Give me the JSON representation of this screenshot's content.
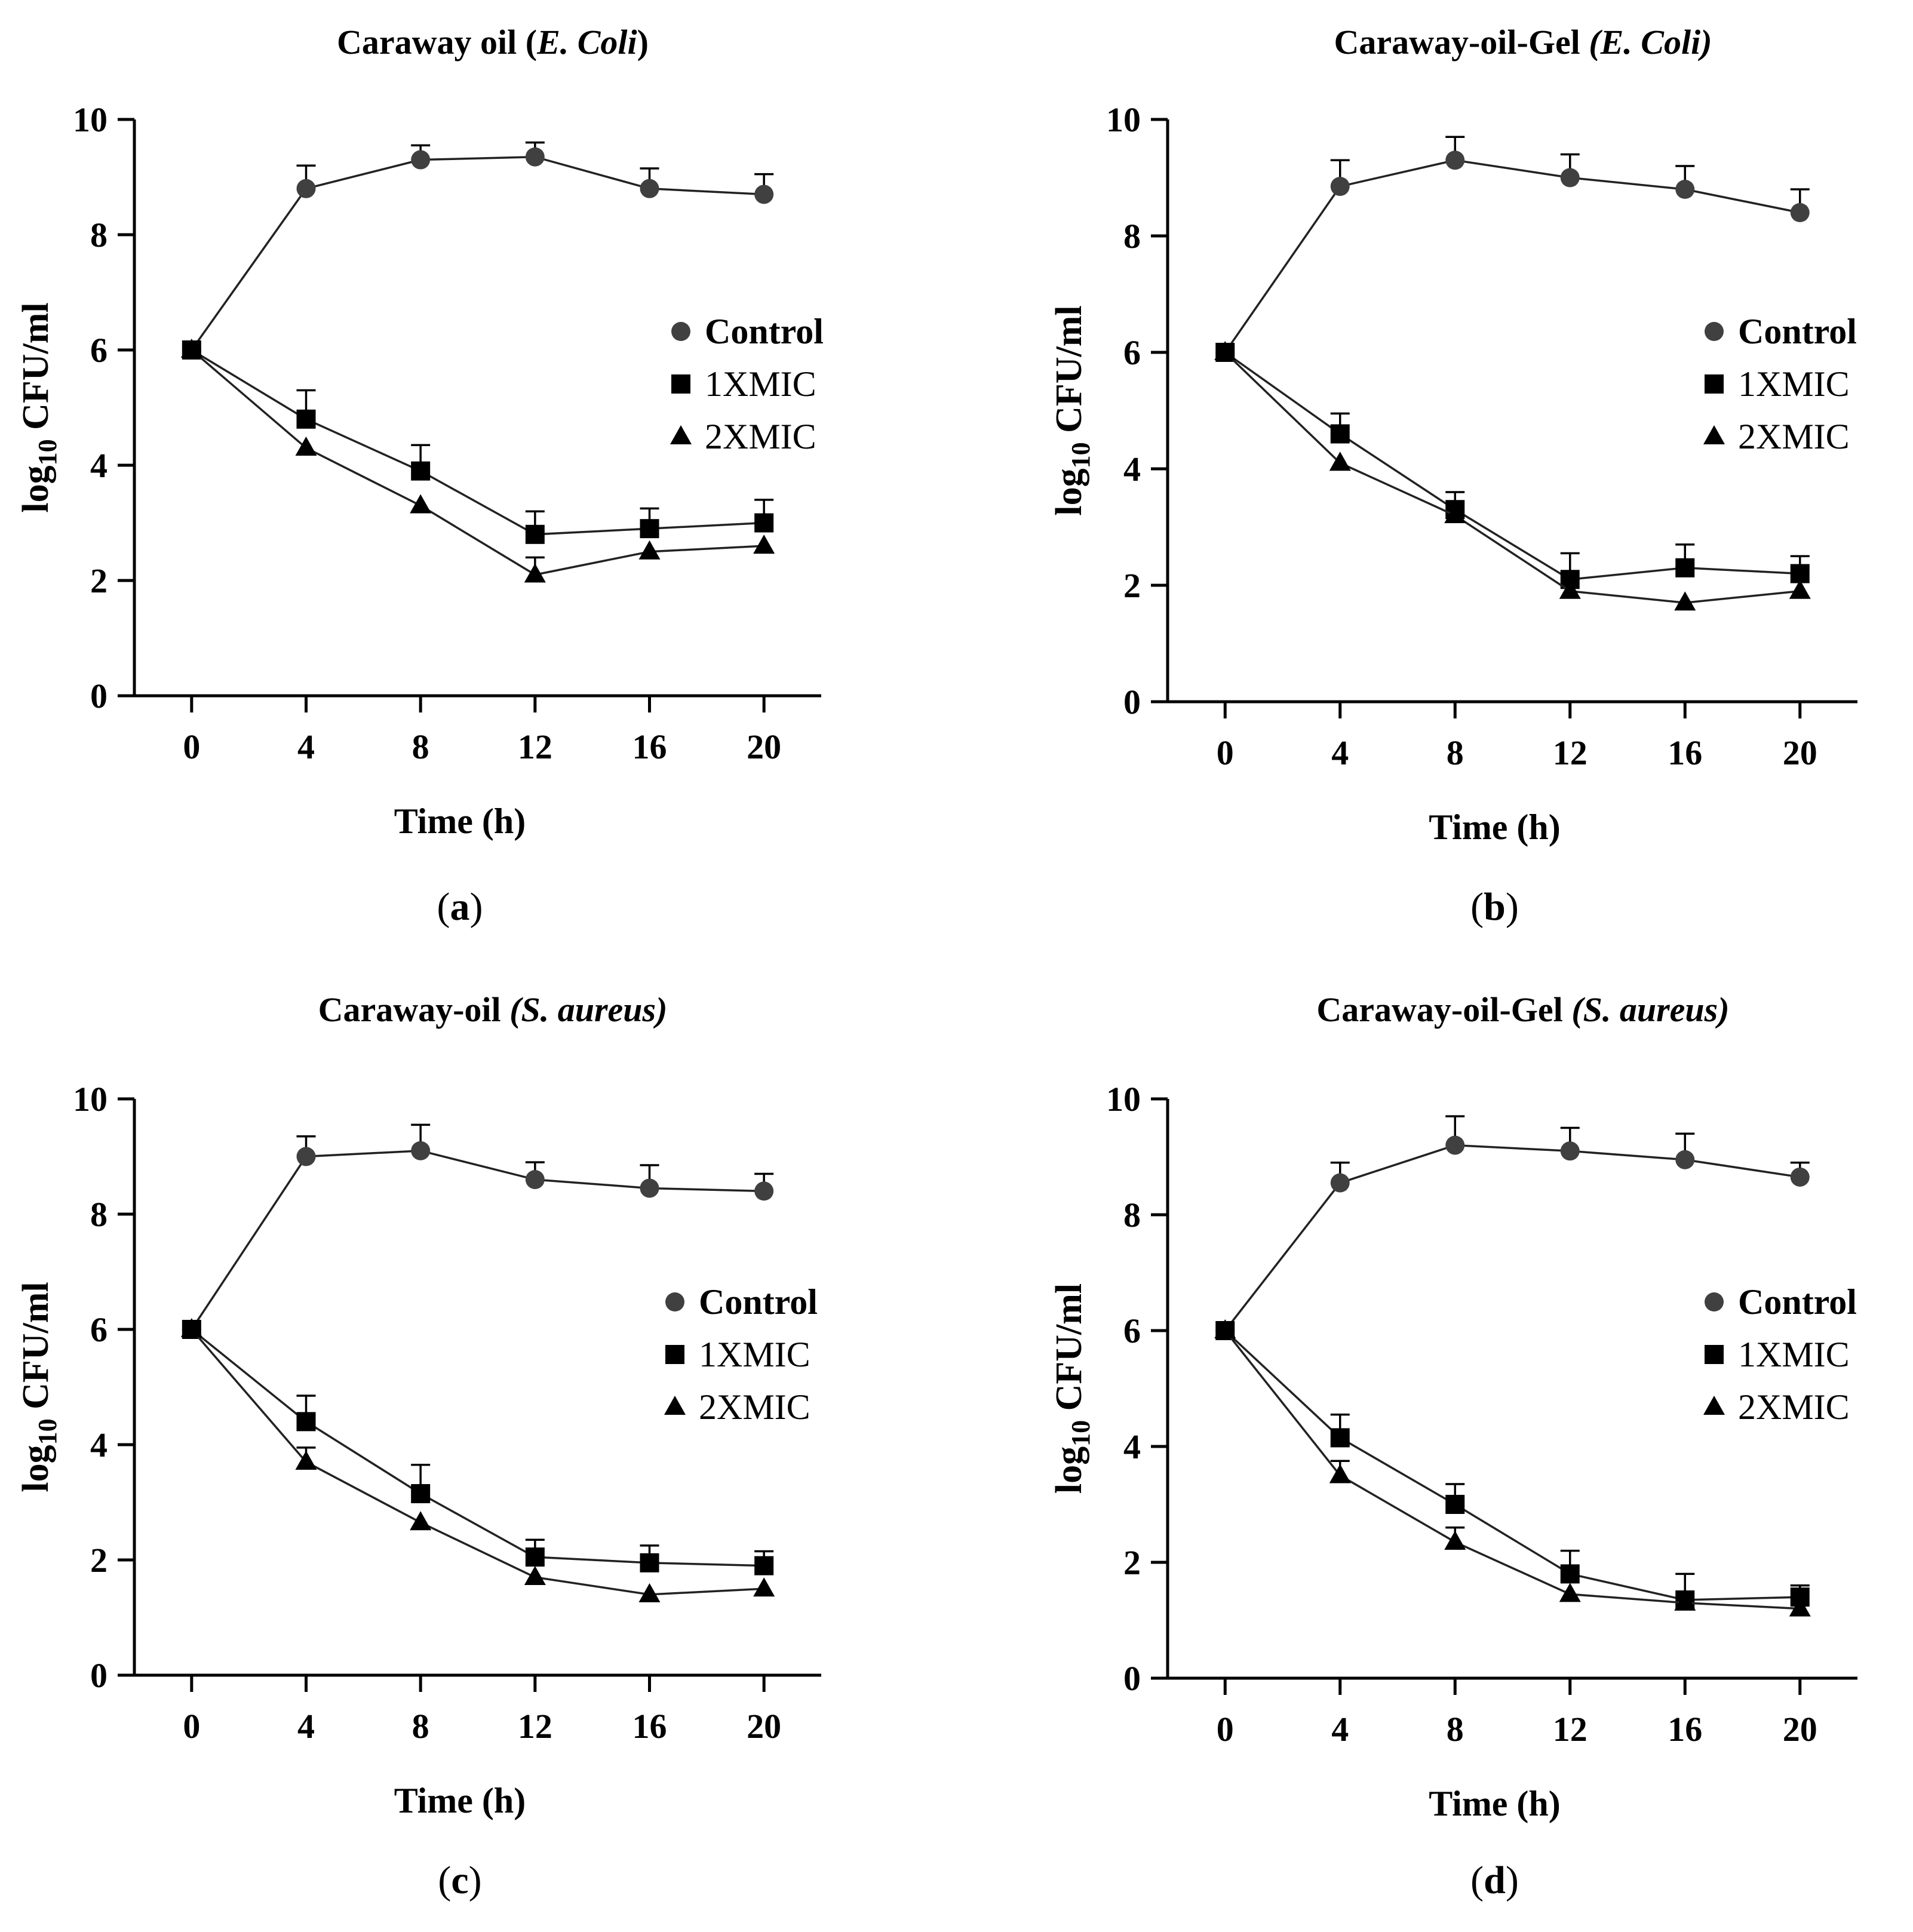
{
  "chart_data": [
    {
      "type": "line",
      "title_prefix": "Caraway oil (",
      "title_italic": "E. Coli",
      "title_suffix": ")",
      "panel_label_pre": "(",
      "panel_label_letter": "a",
      "panel_label_post": ")",
      "xlabel": "Time (h)",
      "ylabel_pre": "log",
      "ylabel_sub": "10",
      "ylabel_post": " CFU/ml",
      "x": [
        0,
        4,
        8,
        12,
        16,
        20
      ],
      "xlim": [
        -2,
        22
      ],
      "ylim": [
        0,
        10
      ],
      "xticks": [
        "0",
        "4",
        "8",
        "12",
        "16",
        "20"
      ],
      "yticks": [
        "0",
        "2",
        "4",
        "6",
        "8",
        "10"
      ],
      "legend_position": "center-right",
      "series": [
        {
          "name": "Control",
          "marker": "circle",
          "values": [
            6.0,
            8.8,
            9.3,
            9.35,
            8.8,
            8.7
          ],
          "errors": [
            0,
            0.4,
            0.25,
            0.25,
            0.35,
            0.35
          ]
        },
        {
          "name": "1XMIC",
          "marker": "square",
          "values": [
            6.0,
            4.8,
            3.9,
            2.8,
            2.9,
            3.0
          ],
          "errors": [
            0,
            0.5,
            0.45,
            0.4,
            0.35,
            0.4
          ]
        },
        {
          "name": "2XMIC",
          "marker": "triangle",
          "values": [
            6.0,
            4.3,
            3.3,
            2.1,
            2.5,
            2.6
          ],
          "errors": [
            0,
            0,
            0,
            0.3,
            0,
            0
          ]
        }
      ]
    },
    {
      "type": "line",
      "title_prefix": "Caraway-oil-Gel ",
      "title_italic": "(E. Coli)",
      "title_suffix": "",
      "panel_label_pre": "(",
      "panel_label_letter": "b",
      "panel_label_post": ")",
      "xlabel": "Time (h)",
      "ylabel_pre": "log",
      "ylabel_sub": "10",
      "ylabel_post": " CFU/ml",
      "x": [
        0,
        4,
        8,
        12,
        16,
        20
      ],
      "xlim": [
        -2,
        22
      ],
      "ylim": [
        0,
        10
      ],
      "xticks": [
        "0",
        "4",
        "8",
        "12",
        "16",
        "20"
      ],
      "yticks": [
        "0",
        "2",
        "4",
        "6",
        "8",
        "10"
      ],
      "legend_position": "center-right",
      "series": [
        {
          "name": "Control",
          "marker": "circle",
          "values": [
            6.0,
            8.85,
            9.3,
            9.0,
            8.8,
            8.4
          ],
          "errors": [
            0,
            0.45,
            0.4,
            0.4,
            0.4,
            0.4
          ]
        },
        {
          "name": "1XMIC",
          "marker": "square",
          "values": [
            6.0,
            4.6,
            3.3,
            2.1,
            2.3,
            2.2
          ],
          "errors": [
            0,
            0.35,
            0.3,
            0.45,
            0.4,
            0.3
          ]
        },
        {
          "name": "2XMIC",
          "marker": "triangle",
          "values": [
            6.0,
            4.1,
            3.2,
            1.9,
            1.7,
            1.9
          ],
          "errors": [
            0,
            0,
            0,
            0,
            0,
            0
          ]
        }
      ]
    },
    {
      "type": "line",
      "title_prefix": "Caraway-oil ",
      "title_italic": "(S. aureus)",
      "title_suffix": "",
      "panel_label_pre": "(",
      "panel_label_letter": "c",
      "panel_label_post": ")",
      "xlabel": "Time (h)",
      "ylabel_pre": "log",
      "ylabel_sub": "10",
      "ylabel_post": " CFU/ml",
      "x": [
        0,
        4,
        8,
        12,
        16,
        20
      ],
      "xlim": [
        -2,
        22
      ],
      "ylim": [
        0,
        10
      ],
      "xticks": [
        "0",
        "4",
        "8",
        "12",
        "16",
        "20"
      ],
      "yticks": [
        "0",
        "2",
        "4",
        "6",
        "8",
        "10"
      ],
      "legend_position": "center-right",
      "series": [
        {
          "name": "Control",
          "marker": "circle",
          "values": [
            6.0,
            9.0,
            9.1,
            8.6,
            8.45,
            8.4
          ],
          "errors": [
            0,
            0.35,
            0.45,
            0.3,
            0.4,
            0.3
          ]
        },
        {
          "name": "1XMIC",
          "marker": "square",
          "values": [
            6.0,
            4.4,
            3.15,
            2.05,
            1.95,
            1.9
          ],
          "errors": [
            0,
            0.45,
            0.5,
            0.3,
            0.3,
            0.25
          ]
        },
        {
          "name": "2XMIC",
          "marker": "triangle",
          "values": [
            6.0,
            3.7,
            2.65,
            1.7,
            1.4,
            1.5
          ],
          "errors": [
            0,
            0.25,
            0,
            0,
            0,
            0
          ]
        }
      ]
    },
    {
      "type": "line",
      "title_prefix": "Caraway-oil-Gel ",
      "title_italic": "(S. aureus)",
      "title_suffix": "",
      "panel_label_pre": "(",
      "panel_label_letter": "d",
      "panel_label_post": ")",
      "xlabel": "Time (h)",
      "ylabel_pre": "log",
      "ylabel_sub": "10",
      "ylabel_post": " CFU/ml",
      "x": [
        0,
        4,
        8,
        12,
        16,
        20
      ],
      "xlim": [
        -2,
        22
      ],
      "ylim": [
        0,
        10
      ],
      "xticks": [
        "0",
        "4",
        "8",
        "12",
        "16",
        "20"
      ],
      "yticks": [
        "0",
        "2",
        "4",
        "6",
        "8",
        "10"
      ],
      "legend_position": "center-right",
      "series": [
        {
          "name": "Control",
          "marker": "circle",
          "values": [
            6.0,
            8.55,
            9.2,
            9.1,
            8.95,
            8.65
          ],
          "errors": [
            0,
            0.35,
            0.5,
            0.4,
            0.45,
            0.25
          ]
        },
        {
          "name": "1XMIC",
          "marker": "square",
          "values": [
            6.0,
            4.15,
            3.0,
            1.8,
            1.35,
            1.4
          ],
          "errors": [
            0,
            0.4,
            0.35,
            0.4,
            0.45,
            0.2
          ]
        },
        {
          "name": "2XMIC",
          "marker": "triangle",
          "values": [
            6.0,
            3.5,
            2.35,
            1.45,
            1.3,
            1.2
          ],
          "errors": [
            0,
            0.25,
            0.25,
            0,
            0,
            0
          ]
        }
      ]
    }
  ],
  "colors": {
    "control": "#404040",
    "treatment": "#000000",
    "line": "#222222"
  }
}
